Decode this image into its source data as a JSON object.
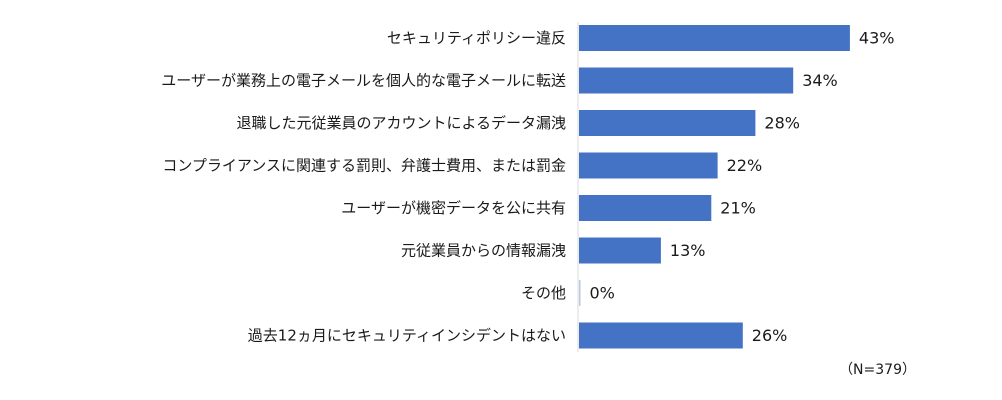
{
  "chart_data": {
    "type": "bar",
    "orientation": "horizontal",
    "categories": [
      "セキュリティポリシー違反",
      "ユーザーが業務上の電子メールを個人的な電子メールに転送",
      "退職した元従業員のアカウントによるデータ漏洩",
      "コンプライアンスに関連する罰則、弁護士費用、または罰金",
      "ユーザーが機密データを公に共有",
      "元従業員からの情報漏洩",
      "その他",
      "過去12ヵ月にセキュリティインシデントはない"
    ],
    "values": [
      43,
      34,
      28,
      22,
      21,
      13,
      0,
      26
    ],
    "value_labels": [
      "43%",
      "34%",
      "28%",
      "22%",
      "21%",
      "13%",
      "0%",
      "26%"
    ],
    "unit": "%",
    "xlim": [
      0,
      50
    ],
    "grid": false,
    "legend": "none",
    "bar_color": "#4472C4",
    "note": "（N=379）"
  }
}
